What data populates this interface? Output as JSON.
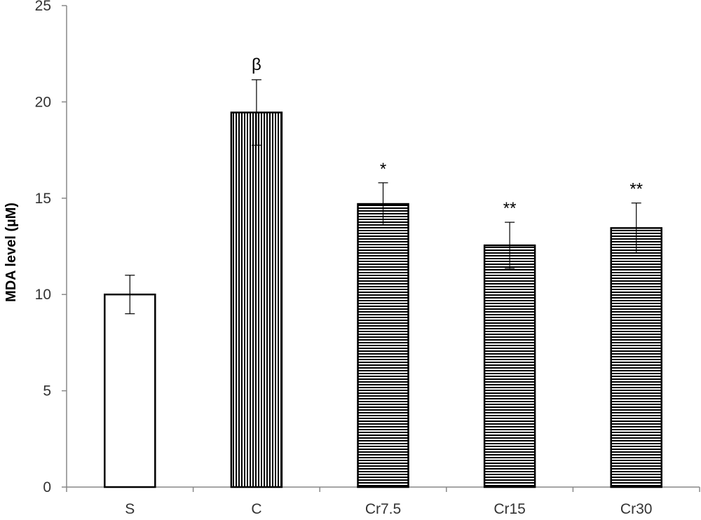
{
  "chart_data": {
    "type": "bar",
    "title": "",
    "xlabel": "",
    "ylabel": "MDA level (µM)",
    "ylim": [
      0,
      25
    ],
    "yticks": [
      0,
      5,
      10,
      15,
      20,
      25
    ],
    "grid": false,
    "legend": "none",
    "categories": [
      "S",
      "C",
      "Cr7.5",
      "Cr15",
      "Cr30"
    ],
    "values": [
      10.0,
      19.45,
      14.7,
      12.55,
      13.45
    ],
    "errors": [
      1.0,
      1.7,
      1.1,
      1.2,
      1.3
    ],
    "annotations": [
      "",
      "β",
      "*",
      "**",
      "**"
    ],
    "fills": [
      "none",
      "vertical-stripes",
      "horizontal-stripes",
      "horizontal-stripes",
      "horizontal-stripes"
    ],
    "colors": {
      "bar_stroke": "#000000",
      "bar_background": "#ffffff",
      "axis": "#888888",
      "tick_text": "#333333"
    }
  }
}
